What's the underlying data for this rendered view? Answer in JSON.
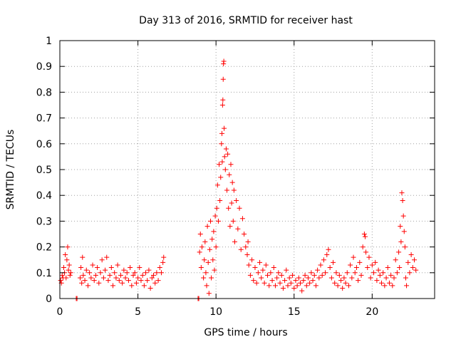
{
  "chart_data": {
    "type": "scatter",
    "title": "Day 313 of 2016, SRMTID for receiver hast",
    "xlabel": "GPS time / hours",
    "ylabel": "SRMTID / TECUs",
    "xlim": [
      0,
      24
    ],
    "ylim": [
      0,
      1
    ],
    "xticks": [
      0,
      5,
      10,
      15,
      20
    ],
    "yticks": [
      0,
      0.1,
      0.2,
      0.3,
      0.4,
      0.5,
      0.6,
      0.7,
      0.8,
      0.9,
      1
    ],
    "xtick_labels": [
      "0",
      "5",
      "10",
      "15",
      "20"
    ],
    "ytick_labels": [
      "0",
      "0.1",
      "0.2",
      "0.3",
      "0.4",
      "0.5",
      "0.6",
      "0.7",
      "0.8",
      "0.9",
      "1"
    ],
    "grid": true,
    "marker": "+",
    "color": "#ff0000",
    "points": [
      [
        0.05,
        0.07
      ],
      [
        0.1,
        0.06
      ],
      [
        0.15,
        0.09
      ],
      [
        0.2,
        0.08
      ],
      [
        0.25,
        0.12
      ],
      [
        0.3,
        0.1
      ],
      [
        0.35,
        0.17
      ],
      [
        0.4,
        0.08
      ],
      [
        0.45,
        0.15
      ],
      [
        0.5,
        0.2
      ],
      [
        0.55,
        0.11
      ],
      [
        0.6,
        0.13
      ],
      [
        0.65,
        0.09
      ],
      [
        0.7,
        0.1
      ],
      [
        1.05,
        0.0
      ],
      [
        1.1,
        0.0
      ],
      [
        1.3,
        0.08
      ],
      [
        1.35,
        0.12
      ],
      [
        1.4,
        0.06
      ],
      [
        1.45,
        0.16
      ],
      [
        1.5,
        0.09
      ],
      [
        1.6,
        0.07
      ],
      [
        1.7,
        0.11
      ],
      [
        1.8,
        0.05
      ],
      [
        1.9,
        0.1
      ],
      [
        2.0,
        0.08
      ],
      [
        2.1,
        0.13
      ],
      [
        2.2,
        0.07
      ],
      [
        2.3,
        0.09
      ],
      [
        2.4,
        0.12
      ],
      [
        2.5,
        0.06
      ],
      [
        2.6,
        0.1
      ],
      [
        2.7,
        0.15
      ],
      [
        2.8,
        0.08
      ],
      [
        2.9,
        0.11
      ],
      [
        3.0,
        0.16
      ],
      [
        3.1,
        0.07
      ],
      [
        3.2,
        0.09
      ],
      [
        3.3,
        0.12
      ],
      [
        3.4,
        0.05
      ],
      [
        3.5,
        0.1
      ],
      [
        3.6,
        0.08
      ],
      [
        3.7,
        0.13
      ],
      [
        3.8,
        0.07
      ],
      [
        3.9,
        0.09
      ],
      [
        4.0,
        0.06
      ],
      [
        4.1,
        0.11
      ],
      [
        4.2,
        0.08
      ],
      [
        4.3,
        0.1
      ],
      [
        4.4,
        0.07
      ],
      [
        4.5,
        0.12
      ],
      [
        4.6,
        0.05
      ],
      [
        4.7,
        0.09
      ],
      [
        4.8,
        0.1
      ],
      [
        4.9,
        0.06
      ],
      [
        5.0,
        0.08
      ],
      [
        5.1,
        0.12
      ],
      [
        5.2,
        0.07
      ],
      [
        5.3,
        0.09
      ],
      [
        5.4,
        0.05
      ],
      [
        5.5,
        0.1
      ],
      [
        5.6,
        0.07
      ],
      [
        5.7,
        0.11
      ],
      [
        5.8,
        0.04
      ],
      [
        5.9,
        0.08
      ],
      [
        6.0,
        0.09
      ],
      [
        6.1,
        0.06
      ],
      [
        6.2,
        0.1
      ],
      [
        6.3,
        0.07
      ],
      [
        6.4,
        0.12
      ],
      [
        6.5,
        0.1
      ],
      [
        6.6,
        0.14
      ],
      [
        6.65,
        0.16
      ],
      [
        8.85,
        0.0
      ],
      [
        8.9,
        0.0
      ],
      [
        8.95,
        0.18
      ],
      [
        9.0,
        0.25
      ],
      [
        9.05,
        0.12
      ],
      [
        9.1,
        0.2
      ],
      [
        9.2,
        0.08
      ],
      [
        9.25,
        0.15
      ],
      [
        9.3,
        0.22
      ],
      [
        9.35,
        0.1
      ],
      [
        9.4,
        0.05
      ],
      [
        9.45,
        0.28
      ],
      [
        9.5,
        0.14
      ],
      [
        9.55,
        0.02
      ],
      [
        9.6,
        0.19
      ],
      [
        9.65,
        0.3
      ],
      [
        9.7,
        0.08
      ],
      [
        9.75,
        0.23
      ],
      [
        9.8,
        0.15
      ],
      [
        9.85,
        0.26
      ],
      [
        9.9,
        0.11
      ],
      [
        9.95,
        0.32
      ],
      [
        10.0,
        0.2
      ],
      [
        10.05,
        0.35
      ],
      [
        10.1,
        0.44
      ],
      [
        10.15,
        0.3
      ],
      [
        10.2,
        0.52
      ],
      [
        10.25,
        0.38
      ],
      [
        10.3,
        0.47
      ],
      [
        10.35,
        0.6
      ],
      [
        10.38,
        0.64
      ],
      [
        10.4,
        0.53
      ],
      [
        10.42,
        0.75
      ],
      [
        10.44,
        0.77
      ],
      [
        10.46,
        0.85
      ],
      [
        10.48,
        0.91
      ],
      [
        10.5,
        0.92
      ],
      [
        10.52,
        0.66
      ],
      [
        10.55,
        0.55
      ],
      [
        10.6,
        0.5
      ],
      [
        10.65,
        0.58
      ],
      [
        10.7,
        0.42
      ],
      [
        10.75,
        0.56
      ],
      [
        10.8,
        0.35
      ],
      [
        10.85,
        0.48
      ],
      [
        10.9,
        0.28
      ],
      [
        10.95,
        0.52
      ],
      [
        11.0,
        0.37
      ],
      [
        11.05,
        0.45
      ],
      [
        11.1,
        0.3
      ],
      [
        11.15,
        0.42
      ],
      [
        11.2,
        0.22
      ],
      [
        11.3,
        0.38
      ],
      [
        11.4,
        0.27
      ],
      [
        11.5,
        0.35
      ],
      [
        11.6,
        0.19
      ],
      [
        11.7,
        0.31
      ],
      [
        11.8,
        0.25
      ],
      [
        11.9,
        0.2
      ],
      [
        12.0,
        0.17
      ],
      [
        12.05,
        0.22
      ],
      [
        12.1,
        0.13
      ],
      [
        12.2,
        0.09
      ],
      [
        12.3,
        0.15
      ],
      [
        12.4,
        0.07
      ],
      [
        12.5,
        0.12
      ],
      [
        12.6,
        0.06
      ],
      [
        12.7,
        0.1
      ],
      [
        12.8,
        0.14
      ],
      [
        12.9,
        0.08
      ],
      [
        13.0,
        0.11
      ],
      [
        13.1,
        0.06
      ],
      [
        13.2,
        0.13
      ],
      [
        13.3,
        0.09
      ],
      [
        13.4,
        0.05
      ],
      [
        13.5,
        0.1
      ],
      [
        13.6,
        0.07
      ],
      [
        13.7,
        0.12
      ],
      [
        13.8,
        0.05
      ],
      [
        13.9,
        0.08
      ],
      [
        14.0,
        0.1
      ],
      [
        14.1,
        0.06
      ],
      [
        14.2,
        0.09
      ],
      [
        14.3,
        0.04
      ],
      [
        14.4,
        0.07
      ],
      [
        14.5,
        0.11
      ],
      [
        14.6,
        0.05
      ],
      [
        14.7,
        0.08
      ],
      [
        14.8,
        0.06
      ],
      [
        14.9,
        0.09
      ],
      [
        15.0,
        0.04
      ],
      [
        15.1,
        0.07
      ],
      [
        15.2,
        0.05
      ],
      [
        15.3,
        0.08
      ],
      [
        15.4,
        0.06
      ],
      [
        15.5,
        0.03
      ],
      [
        15.6,
        0.07
      ],
      [
        15.7,
        0.09
      ],
      [
        15.8,
        0.05
      ],
      [
        15.9,
        0.08
      ],
      [
        16.0,
        0.06
      ],
      [
        16.1,
        0.1
      ],
      [
        16.2,
        0.07
      ],
      [
        16.3,
        0.09
      ],
      [
        16.4,
        0.05
      ],
      [
        16.5,
        0.11
      ],
      [
        16.6,
        0.08
      ],
      [
        16.7,
        0.13
      ],
      [
        16.8,
        0.09
      ],
      [
        16.9,
        0.15
      ],
      [
        17.0,
        0.1
      ],
      [
        17.1,
        0.17
      ],
      [
        17.2,
        0.19
      ],
      [
        17.3,
        0.12
      ],
      [
        17.4,
        0.08
      ],
      [
        17.5,
        0.14
      ],
      [
        17.6,
        0.06
      ],
      [
        17.7,
        0.1
      ],
      [
        17.8,
        0.05
      ],
      [
        17.9,
        0.09
      ],
      [
        18.0,
        0.07
      ],
      [
        18.1,
        0.04
      ],
      [
        18.2,
        0.08
      ],
      [
        18.3,
        0.06
      ],
      [
        18.4,
        0.1
      ],
      [
        18.5,
        0.05
      ],
      [
        18.6,
        0.13
      ],
      [
        18.7,
        0.08
      ],
      [
        18.8,
        0.16
      ],
      [
        18.9,
        0.1
      ],
      [
        19.0,
        0.12
      ],
      [
        19.1,
        0.07
      ],
      [
        19.2,
        0.14
      ],
      [
        19.3,
        0.09
      ],
      [
        19.4,
        0.2
      ],
      [
        19.5,
        0.25
      ],
      [
        19.55,
        0.24
      ],
      [
        19.6,
        0.18
      ],
      [
        19.7,
        0.12
      ],
      [
        19.8,
        0.16
      ],
      [
        19.9,
        0.08
      ],
      [
        20.0,
        0.13
      ],
      [
        20.1,
        0.1
      ],
      [
        20.2,
        0.14
      ],
      [
        20.3,
        0.07
      ],
      [
        20.4,
        0.11
      ],
      [
        20.5,
        0.09
      ],
      [
        20.6,
        0.06
      ],
      [
        20.7,
        0.1
      ],
      [
        20.8,
        0.05
      ],
      [
        20.9,
        0.08
      ],
      [
        21.0,
        0.12
      ],
      [
        21.1,
        0.06
      ],
      [
        21.2,
        0.09
      ],
      [
        21.3,
        0.05
      ],
      [
        21.4,
        0.08
      ],
      [
        21.5,
        0.15
      ],
      [
        21.6,
        0.1
      ],
      [
        21.7,
        0.18
      ],
      [
        21.75,
        0.12
      ],
      [
        21.8,
        0.28
      ],
      [
        21.85,
        0.22
      ],
      [
        21.9,
        0.41
      ],
      [
        21.95,
        0.38
      ],
      [
        22.0,
        0.32
      ],
      [
        22.05,
        0.26
      ],
      [
        22.1,
        0.2
      ],
      [
        22.15,
        0.08
      ],
      [
        22.2,
        0.05
      ],
      [
        22.3,
        0.14
      ],
      [
        22.4,
        0.1
      ],
      [
        22.5,
        0.17
      ],
      [
        22.6,
        0.12
      ],
      [
        22.7,
        0.15
      ],
      [
        22.8,
        0.11
      ]
    ]
  }
}
